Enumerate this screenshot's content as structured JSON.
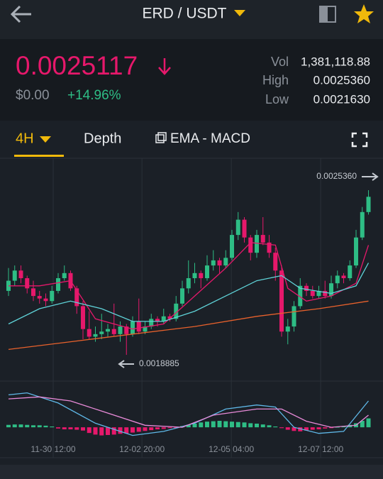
{
  "header": {
    "pair": "ERD / USDT"
  },
  "ticker": {
    "price": "0.0025117",
    "fiat": "$0.00",
    "change": "+14.96%",
    "stats": [
      {
        "label": "Vol",
        "value": "1,381,118.88"
      },
      {
        "label": "High",
        "value": "0.0025360"
      },
      {
        "label": "Low",
        "value": "0.0021630"
      }
    ]
  },
  "tabs": [
    "4H",
    "Depth",
    "EMA - MACD"
  ],
  "chart_data": [
    {
      "type": "candlestick",
      "up_color": "#2ebd85",
      "down_color": "#e6186b",
      "xlim": [
        -1.37,
        60.34
      ],
      "ylim": [
        0.001791,
        0.002656
      ],
      "xticks": [
        {
          "value": 7.2,
          "label": "11-30 12:00"
        },
        {
          "value": 21.5,
          "label": "12-02 20:00"
        },
        {
          "value": 35.9,
          "label": "12-05 04:00"
        },
        {
          "value": 50.3,
          "label": "12-07 12:00"
        }
      ],
      "open": [
        0.00214,
        0.00218,
        0.00222,
        0.00219,
        0.00215,
        0.00212,
        0.00211,
        0.0021,
        0.00214,
        0.00219,
        0.00221,
        0.00215,
        0.00208,
        0.00199,
        0.00196,
        0.00197,
        0.00198,
        0.00199,
        0.00197,
        0.002,
        0.00197,
        0.00202,
        0.00198,
        0.002,
        0.00203,
        0.00202,
        0.00204,
        0.00203,
        0.00209,
        0.00215,
        0.00219,
        0.00221,
        0.00219,
        0.00224,
        0.00226,
        0.00224,
        0.00227,
        0.00236,
        0.00242,
        0.00235,
        0.00229,
        0.00236,
        0.00233,
        0.00229,
        0.00222,
        0.00198,
        0.002,
        0.00208,
        0.00216,
        0.00214,
        0.00212,
        0.00214,
        0.00212,
        0.00217,
        0.0022,
        0.00219,
        0.00224,
        0.00235,
        0.00245
      ],
      "close": [
        0.00218,
        0.00222,
        0.00219,
        0.00215,
        0.00212,
        0.00211,
        0.0021,
        0.00214,
        0.00219,
        0.00221,
        0.00215,
        0.00208,
        0.00199,
        0.00196,
        0.00197,
        0.00198,
        0.00199,
        0.00197,
        0.002,
        0.00197,
        0.00202,
        0.00198,
        0.002,
        0.00203,
        0.00202,
        0.00204,
        0.00203,
        0.00209,
        0.00215,
        0.00219,
        0.00221,
        0.00219,
        0.00224,
        0.00226,
        0.00224,
        0.00227,
        0.00236,
        0.00242,
        0.00235,
        0.00229,
        0.00236,
        0.00233,
        0.00229,
        0.00222,
        0.00198,
        0.002,
        0.00208,
        0.00216,
        0.00214,
        0.00212,
        0.00214,
        0.00212,
        0.00217,
        0.0022,
        0.00219,
        0.00224,
        0.00235,
        0.00245,
        0.00251
      ],
      "high": [
        0.00223,
        0.00224,
        0.00224,
        0.0022,
        0.00218,
        0.00214,
        0.00213,
        0.00216,
        0.00221,
        0.00224,
        0.00222,
        0.00216,
        0.0021,
        0.00206,
        0.002,
        0.00205,
        0.00201,
        0.00209,
        0.00202,
        0.00201,
        0.00204,
        0.00211,
        0.00202,
        0.00205,
        0.00204,
        0.00207,
        0.00205,
        0.00212,
        0.00218,
        0.00226,
        0.00225,
        0.00222,
        0.00228,
        0.0023,
        0.00227,
        0.0023,
        0.00238,
        0.00245,
        0.00243,
        0.00236,
        0.00238,
        0.00243,
        0.00236,
        0.00231,
        0.00224,
        0.00203,
        0.0021,
        0.00219,
        0.00217,
        0.00216,
        0.00216,
        0.00218,
        0.0022,
        0.00222,
        0.00221,
        0.00226,
        0.00238,
        0.00247,
        0.002536
      ],
      "low": [
        0.00212,
        0.00216,
        0.00217,
        0.00213,
        0.0021,
        0.00209,
        0.00208,
        0.00209,
        0.00213,
        0.00218,
        0.00214,
        0.00205,
        0.00195,
        0.00195,
        0.00194,
        0.00195,
        0.00196,
        0.00196,
        0.00194,
        0.0018885,
        0.00196,
        0.00197,
        0.00197,
        0.00199,
        0.002,
        0.00201,
        0.00202,
        0.00202,
        0.00208,
        0.00213,
        0.00217,
        0.00215,
        0.00218,
        0.00222,
        0.00221,
        0.00223,
        0.00226,
        0.00234,
        0.00233,
        0.00226,
        0.00227,
        0.00232,
        0.00227,
        0.00218,
        0.00196,
        0.00193,
        0.00198,
        0.00207,
        0.00212,
        0.00211,
        0.00211,
        0.00211,
        0.00211,
        0.00215,
        0.00217,
        0.00218,
        0.00223,
        0.00234,
        0.00244
      ],
      "lines": [
        {
          "color": "#e6186b",
          "x": [
            0,
            5,
            10,
            14,
            20,
            25,
            30,
            35,
            39,
            43,
            45,
            48,
            52,
            56,
            58
          ],
          "values": [
            0.00216,
            0.00216,
            0.00218,
            0.00203,
            0.00199,
            0.00201,
            0.00212,
            0.00223,
            0.00233,
            0.00232,
            0.00215,
            0.0021,
            0.00212,
            0.00217,
            0.00232
          ]
        },
        {
          "color": "#5fd3d8",
          "x": [
            0,
            5,
            10,
            15,
            20,
            25,
            30,
            35,
            40,
            44,
            47,
            52,
            56,
            58
          ],
          "values": [
            0.00201,
            0.00207,
            0.0021,
            0.00207,
            0.00202,
            0.00202,
            0.00206,
            0.00212,
            0.00218,
            0.0022,
            0.00215,
            0.00213,
            0.00216,
            0.00225
          ]
        },
        {
          "color": "#e8612c",
          "x": [
            0,
            10,
            20,
            30,
            40,
            50,
            58
          ],
          "values": [
            0.00191,
            0.00194,
            0.00197,
            0.002,
            0.00204,
            0.00207,
            0.0021
          ]
        }
      ],
      "annotations": [
        {
          "value": 0.002536,
          "label": "0.0025360"
        },
        {
          "value": 0.0018885,
          "label": "0.0018885"
        }
      ]
    },
    {
      "type": "macd",
      "xlim": [
        -1.37,
        60.34
      ],
      "ylim": [
        -0.4,
        1.0
      ],
      "up_color": "#2ebd85",
      "down_color": "#e6186b",
      "histogram": [
        0.06,
        0.07,
        0.07,
        0.06,
        0.05,
        0.05,
        0.04,
        0.02,
        -0.03,
        -0.05,
        -0.05,
        -0.06,
        -0.08,
        -0.14,
        -0.18,
        -0.2,
        -0.19,
        -0.18,
        -0.16,
        -0.15,
        -0.13,
        -0.11,
        -0.09,
        -0.07,
        -0.05,
        -0.04,
        -0.02,
        -0.01,
        0.03,
        0.06,
        0.09,
        0.12,
        0.14,
        0.15,
        0.16,
        0.15,
        0.14,
        0.13,
        0.12,
        0.1,
        0.09,
        0.07,
        0.05,
        0.02,
        -0.02,
        -0.06,
        -0.09,
        -0.1,
        -0.08,
        -0.06,
        -0.05,
        -0.03,
        -0.02,
        0.01,
        0.03,
        0.06,
        0.1,
        0.16,
        0.22
      ],
      "lines": [
        {
          "color": "#5fb8e8",
          "x": [
            0,
            3,
            8,
            14,
            20,
            25,
            30,
            35,
            40,
            43,
            46,
            50,
            54,
            58
          ],
          "values": [
            0.8,
            0.85,
            0.6,
            0.1,
            -0.2,
            -0.1,
            0.1,
            0.45,
            0.55,
            0.5,
            0,
            -0.15,
            -0.1,
            0.65
          ]
        },
        {
          "color": "#e88ad8",
          "x": [
            0,
            5,
            10,
            15,
            22,
            28,
            33,
            40,
            44,
            48,
            52,
            56,
            58
          ],
          "values": [
            0.7,
            0.75,
            0.65,
            0.4,
            0.05,
            0,
            0.3,
            0.45,
            0.45,
            0.15,
            0,
            0.05,
            0.3
          ]
        }
      ]
    }
  ]
}
